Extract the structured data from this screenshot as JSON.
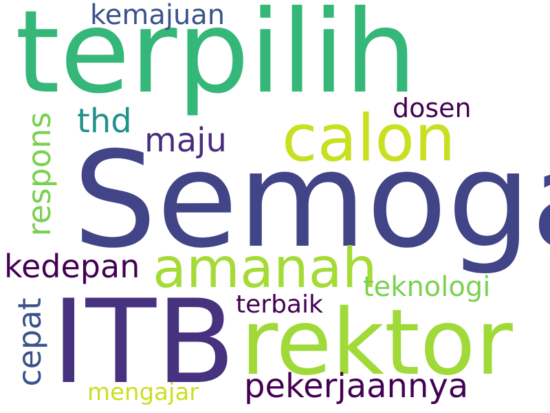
{
  "words": [
    {
      "text": "terpilih",
      "color": "#35b779"
    },
    {
      "text": "kemajuan",
      "color": "#3b528b"
    },
    {
      "text": "calon",
      "color": "#c8e020"
    },
    {
      "text": "dosen",
      "color": "#440154"
    },
    {
      "text": "thd",
      "color": "#21918c"
    },
    {
      "text": "maju",
      "color": "#472d7b"
    },
    {
      "text": "respons",
      "color": "#7ad151"
    },
    {
      "text": "Semoga",
      "color": "#414487"
    },
    {
      "text": "kedepan",
      "color": "#440154"
    },
    {
      "text": "amanah",
      "color": "#a5db36"
    },
    {
      "text": "teknologi",
      "color": "#7ad151"
    },
    {
      "text": "cepat",
      "color": "#3b528b"
    },
    {
      "text": "terbaik",
      "color": "#440154"
    },
    {
      "text": "ITB",
      "color": "#46327e"
    },
    {
      "text": "rektor",
      "color": "#a0da39"
    },
    {
      "text": "pekerjaannya",
      "color": "#440154"
    },
    {
      "text": "mengajar",
      "color": "#c8e020"
    }
  ]
}
